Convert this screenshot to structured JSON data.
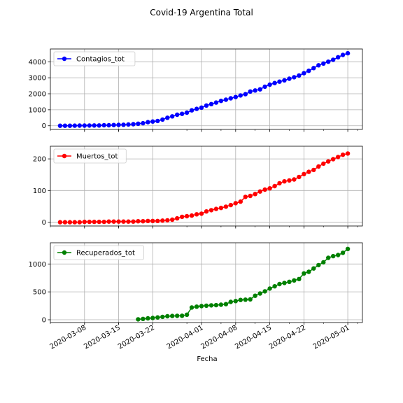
{
  "figure": {
    "title": "Covid-19 Argentina Total",
    "xlabel": "Fecha"
  },
  "chart_data": [
    {
      "type": "line",
      "title": "",
      "xlabel": "Fecha",
      "ylabel": "",
      "x_type": "date",
      "x_ticks": [
        "2020-03-08",
        "2020-03-15",
        "2020-03-22",
        "2020-04-01",
        "2020-04-08",
        "2020-04-15",
        "2020-04-22",
        "2020-05-01"
      ],
      "ylim": [
        -230,
        4800
      ],
      "y_ticks": [
        0,
        1000,
        2000,
        3000,
        4000
      ],
      "grid": true,
      "legend": "upper-left",
      "series": [
        {
          "name": "Contagios_tot",
          "color": "#0000ff",
          "x": [
            "2020-03-03",
            "2020-03-04",
            "2020-03-05",
            "2020-03-06",
            "2020-03-07",
            "2020-03-08",
            "2020-03-09",
            "2020-03-10",
            "2020-03-11",
            "2020-03-12",
            "2020-03-13",
            "2020-03-14",
            "2020-03-15",
            "2020-03-16",
            "2020-03-17",
            "2020-03-18",
            "2020-03-19",
            "2020-03-20",
            "2020-03-21",
            "2020-03-22",
            "2020-03-23",
            "2020-03-24",
            "2020-03-25",
            "2020-03-26",
            "2020-03-27",
            "2020-03-28",
            "2020-03-29",
            "2020-03-30",
            "2020-03-31",
            "2020-04-01",
            "2020-04-02",
            "2020-04-03",
            "2020-04-04",
            "2020-04-05",
            "2020-04-06",
            "2020-04-07",
            "2020-04-08",
            "2020-04-09",
            "2020-04-10",
            "2020-04-11",
            "2020-04-12",
            "2020-04-13",
            "2020-04-14",
            "2020-04-15",
            "2020-04-16",
            "2020-04-17",
            "2020-04-18",
            "2020-04-19",
            "2020-04-20",
            "2020-04-21",
            "2020-04-22",
            "2020-04-23",
            "2020-04-24",
            "2020-04-25",
            "2020-04-26",
            "2020-04-27",
            "2020-04-28",
            "2020-04-29",
            "2020-04-30",
            "2020-05-01"
          ],
          "values": [
            1,
            1,
            2,
            8,
            9,
            12,
            17,
            19,
            21,
            31,
            34,
            45,
            56,
            65,
            79,
            97,
            128,
            158,
            225,
            266,
            301,
            387,
            502,
            589,
            690,
            745,
            820,
            966,
            1054,
            1133,
            1265,
            1353,
            1451,
            1554,
            1628,
            1715,
            1795,
            1894,
            1975,
            2142,
            2208,
            2277,
            2443,
            2571,
            2669,
            2758,
            2839,
            2941,
            3031,
            3144,
            3288,
            3435,
            3607,
            3780,
            3892,
            4003,
            4127,
            4285,
            4428,
            4532
          ]
        }
      ]
    },
    {
      "type": "line",
      "title": "",
      "xlabel": "Fecha",
      "ylabel": "",
      "x_type": "date",
      "x_ticks": [
        "2020-03-08",
        "2020-03-15",
        "2020-03-22",
        "2020-04-01",
        "2020-04-08",
        "2020-04-15",
        "2020-04-22",
        "2020-05-01"
      ],
      "ylim": [
        -12,
        240
      ],
      "y_ticks": [
        0,
        100,
        200
      ],
      "grid": true,
      "legend": "upper-left",
      "series": [
        {
          "name": "Muertos_tot",
          "color": "#ff0000",
          "x": [
            "2020-03-03",
            "2020-03-04",
            "2020-03-05",
            "2020-03-06",
            "2020-03-07",
            "2020-03-08",
            "2020-03-09",
            "2020-03-10",
            "2020-03-11",
            "2020-03-12",
            "2020-03-13",
            "2020-03-14",
            "2020-03-15",
            "2020-03-16",
            "2020-03-17",
            "2020-03-18",
            "2020-03-19",
            "2020-03-20",
            "2020-03-21",
            "2020-03-22",
            "2020-03-23",
            "2020-03-24",
            "2020-03-25",
            "2020-03-26",
            "2020-03-27",
            "2020-03-28",
            "2020-03-29",
            "2020-03-30",
            "2020-03-31",
            "2020-04-01",
            "2020-04-02",
            "2020-04-03",
            "2020-04-04",
            "2020-04-05",
            "2020-04-06",
            "2020-04-07",
            "2020-04-08",
            "2020-04-09",
            "2020-04-10",
            "2020-04-11",
            "2020-04-12",
            "2020-04-13",
            "2020-04-14",
            "2020-04-15",
            "2020-04-16",
            "2020-04-17",
            "2020-04-18",
            "2020-04-19",
            "2020-04-20",
            "2020-04-21",
            "2020-04-22",
            "2020-04-23",
            "2020-04-24",
            "2020-04-25",
            "2020-04-26",
            "2020-04-27",
            "2020-04-28",
            "2020-04-29",
            "2020-04-30",
            "2020-05-01"
          ],
          "values": [
            0,
            0,
            0,
            0,
            0,
            1,
            1,
            1,
            1,
            1,
            2,
            2,
            2,
            2,
            2,
            2,
            3,
            3,
            4,
            4,
            4,
            5,
            6,
            8,
            12,
            17,
            19,
            21,
            25,
            27,
            34,
            38,
            42,
            45,
            49,
            54,
            60,
            65,
            80,
            83,
            89,
            97,
            103,
            107,
            114,
            123,
            129,
            132,
            135,
            143,
            152,
            159,
            165,
            176,
            185,
            192,
            199,
            206,
            213,
            217
          ]
        }
      ]
    },
    {
      "type": "line",
      "title": "",
      "xlabel": "Fecha",
      "ylabel": "",
      "x_type": "date",
      "x_ticks": [
        "2020-03-08",
        "2020-03-15",
        "2020-03-22",
        "2020-04-01",
        "2020-04-08",
        "2020-04-15",
        "2020-04-22",
        "2020-05-01"
      ],
      "ylim": [
        -50,
        1380
      ],
      "y_ticks": [
        0,
        500,
        1000
      ],
      "grid": true,
      "legend": "upper-left",
      "series": [
        {
          "name": "Recuperados_tot",
          "color": "#008000",
          "x": [
            "2020-03-19",
            "2020-03-20",
            "2020-03-21",
            "2020-03-22",
            "2020-03-23",
            "2020-03-24",
            "2020-03-25",
            "2020-03-26",
            "2020-03-27",
            "2020-03-28",
            "2020-03-29",
            "2020-03-30",
            "2020-03-31",
            "2020-04-01",
            "2020-04-02",
            "2020-04-03",
            "2020-04-04",
            "2020-04-05",
            "2020-04-06",
            "2020-04-07",
            "2020-04-08",
            "2020-04-09",
            "2020-04-10",
            "2020-04-11",
            "2020-04-12",
            "2020-04-13",
            "2020-04-14",
            "2020-04-15",
            "2020-04-16",
            "2020-04-17",
            "2020-04-18",
            "2020-04-19",
            "2020-04-20",
            "2020-04-21",
            "2020-04-22",
            "2020-04-23",
            "2020-04-24",
            "2020-04-25",
            "2020-04-26",
            "2020-04-27",
            "2020-04-28",
            "2020-04-29",
            "2020-04-30",
            "2020-05-01"
          ],
          "values": [
            8,
            15,
            25,
            32,
            42,
            52,
            63,
            68,
            70,
            72,
            90,
            220,
            235,
            245,
            252,
            258,
            262,
            270,
            280,
            320,
            335,
            355,
            360,
            365,
            430,
            470,
            510,
            560,
            600,
            640,
            660,
            680,
            705,
            730,
            830,
            860,
            920,
            980,
            1030,
            1110,
            1140,
            1160,
            1200,
            1270
          ]
        }
      ]
    }
  ]
}
